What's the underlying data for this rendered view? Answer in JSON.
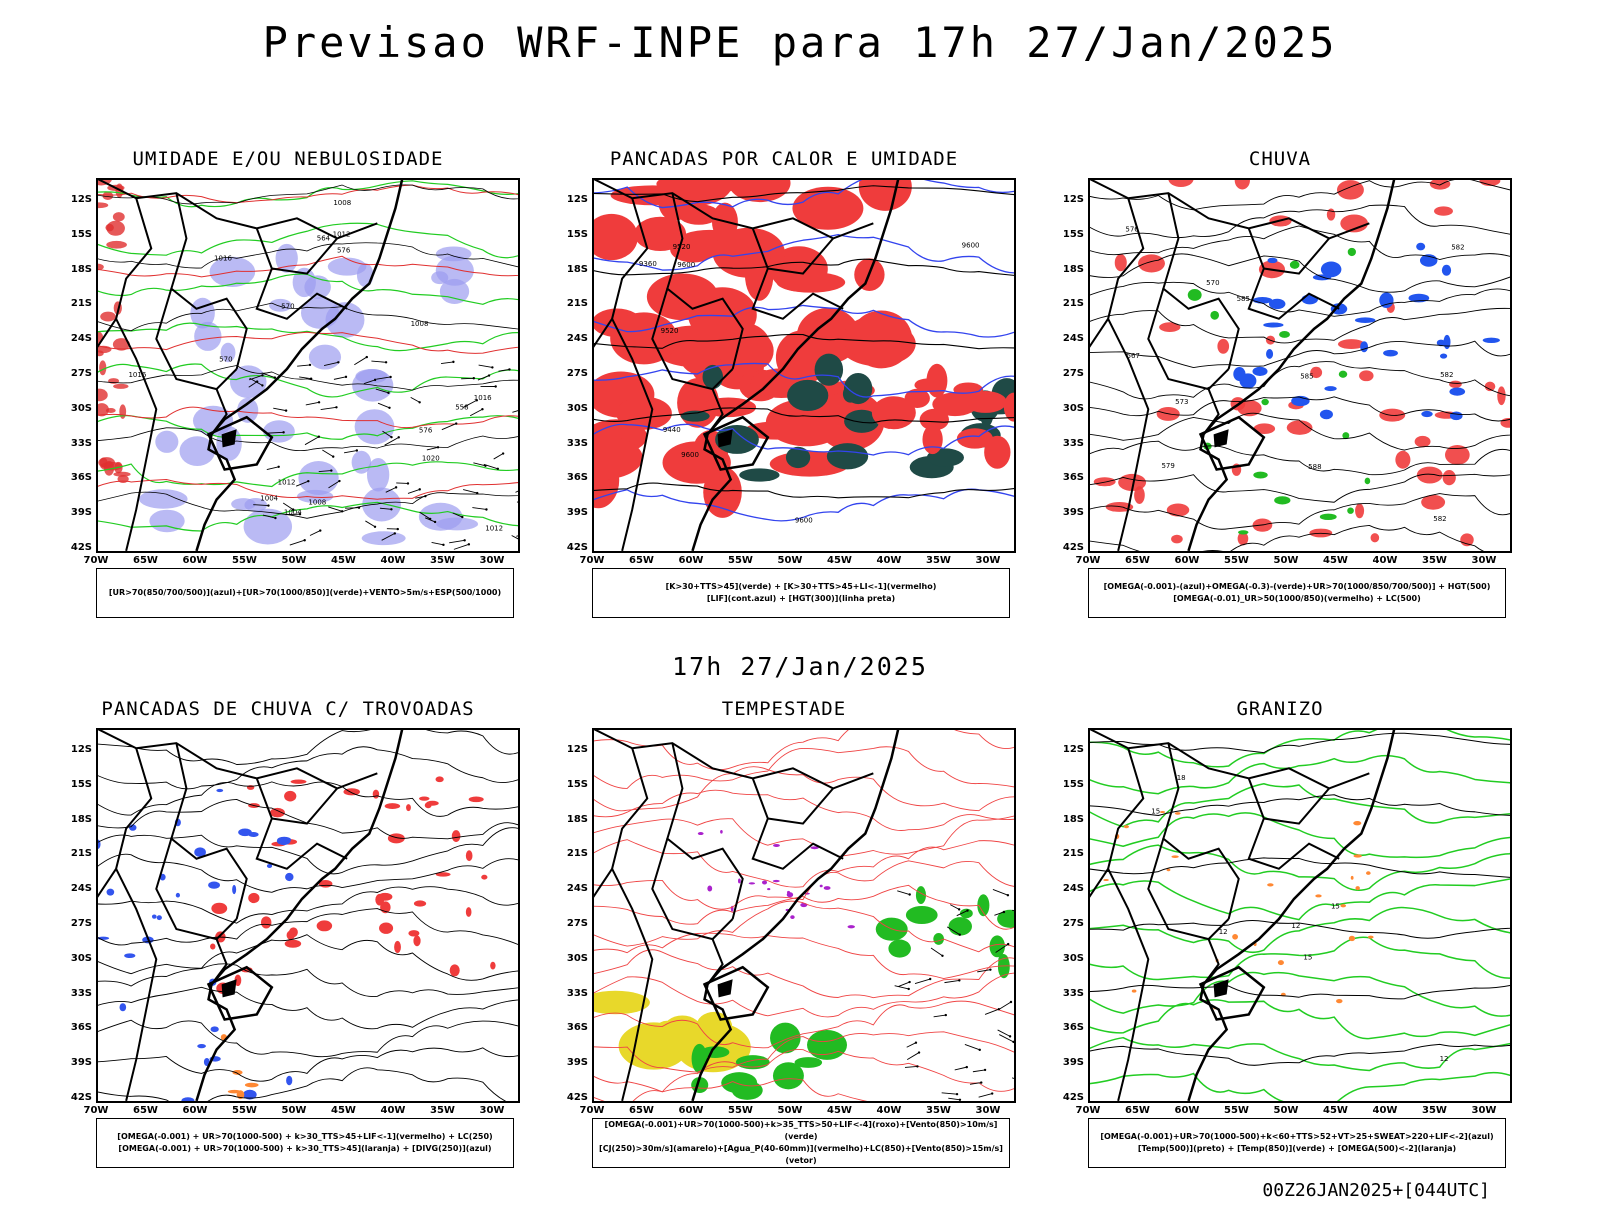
{
  "title": "Previsao WRF-INPE  para 17h 27/Jan/2025",
  "middle_title": "17h 27/Jan/2025",
  "footer": "00Z26JAN2025+[044UTC]",
  "lat_ticks": [
    "12S",
    "15S",
    "18S",
    "21S",
    "24S",
    "27S",
    "30S",
    "33S",
    "36S",
    "39S",
    "42S"
  ],
  "lon_ticks": [
    "70W",
    "65W",
    "60W",
    "55W",
    "50W",
    "45W",
    "40W",
    "35W",
    "30W"
  ],
  "panels": [
    {
      "title": "UMIDADE E/OU NEBULOSIDADE",
      "legend": [
        "[UR>70(850/700/500)](azul)+[UR>70(1000/850)](verde)+VENTO>5m/s+ESP(500/1000)"
      ],
      "labels": [
        "1004",
        "1008",
        "1008",
        "1008",
        "1004",
        "1012",
        "1016",
        "1012",
        "1016",
        "1020",
        "1012",
        "1016",
        "576",
        "570",
        "564",
        "558",
        "570",
        "576"
      ]
    },
    {
      "title": "PANCADAS POR CALOR E UMIDADE",
      "legend": [
        "[K>30+TTS>45](verde) + [K>30+TTS>45+LI<-1](vermelho)",
        "[LIF](cont.azul) + [HGT(300)](linha preta)"
      ],
      "labels": [
        "9600",
        "9600",
        "9600",
        "9600",
        "9520",
        "9440",
        "9360",
        "9520"
      ]
    },
    {
      "title": "CHUVA",
      "legend": [
        "[OMEGA(-0.001)-(azul)+OMEGA(-0.3)-(verde)+UR>70(1000/850/700/500)] + HGT(500)",
        "[OMEGA(-0.01)_UR>50(1000/850)(vermelho) + LC(500)"
      ],
      "labels": [
        "585",
        "582",
        "588",
        "582",
        "582",
        "585",
        "576",
        "573",
        "570",
        "567",
        "579"
      ]
    },
    {
      "title": "PANCADAS DE CHUVA C/ TROVOADAS",
      "legend": [
        "[OMEGA(-0.001) + UR>70(1000-500) + k>30_TTS>45+LIF<-1](vermelho) + LC(250)",
        "[OMEGA(-0.001) + UR>70(1000-500) + k>30_TTS>45](laranja) + [DIVG(250)](azul)"
      ],
      "labels": []
    },
    {
      "title": "TEMPESTADE",
      "legend": [
        "[OMEGA(-0.001)+UR>70(1000-500)+k>35_TTS>50+LIF<-4](roxo)+[Vento(850)>10m/s](verde)",
        "[CJ(250)>30m/s](amarelo)+[Agua_P(40-60mm)](vermelho)+LC(850)+[Vento(850)>15m/s](vetor)"
      ],
      "labels": []
    },
    {
      "title": "GRANIZO",
      "legend": [
        "[OMEGA(-0.001)+UR>70(1000-500)+k<60+TTS>52+VT>25+SWEAT>220+LIF<-2](azul)",
        "[Temp(500)](preto) + [Temp(850)](verde) + [OMEGA(500)<-2](laranja)"
      ],
      "labels": [
        "15",
        "12",
        "12",
        "15",
        "12",
        "15",
        "18"
      ]
    }
  ]
}
